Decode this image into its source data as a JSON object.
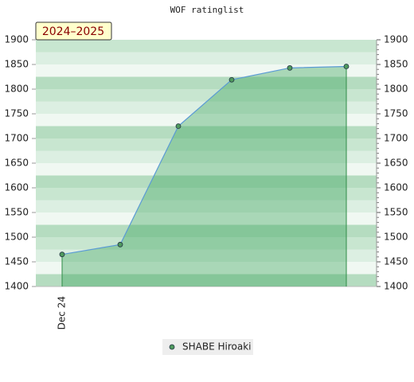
{
  "chart_data": {
    "type": "line",
    "title": "WOF ratinglist",
    "annotation": "2024–2025",
    "categories": [
      "Dec 24",
      null,
      null,
      null,
      null,
      null
    ],
    "series": [
      {
        "name": "SHABE Hiroaki",
        "color": "#4f9a5e",
        "values": [
          1465,
          1485,
          1725,
          1819,
          1843,
          1846
        ]
      }
    ],
    "ylim": [
      1400,
      1900
    ],
    "yticks": [
      1400,
      1450,
      1500,
      1550,
      1600,
      1650,
      1700,
      1750,
      1800,
      1850,
      1900
    ],
    "y2lim": [
      1400,
      1900
    ],
    "y2ticks": [
      1400,
      1450,
      1500,
      1550,
      1600,
      1650,
      1700,
      1750,
      1800,
      1850,
      1900
    ],
    "legend": "bottom"
  }
}
